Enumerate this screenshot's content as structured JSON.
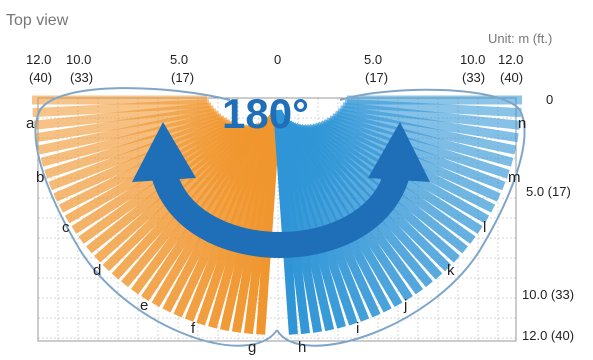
{
  "title": "Top view",
  "unit": "Unit: m (ft.)",
  "angle": "180°",
  "top_ticks": [
    {
      "m": "12.0",
      "ft": "(40)"
    },
    {
      "m": "10.0",
      "ft": "(33)"
    },
    {
      "m": "5.0",
      "ft": "(17)"
    },
    {
      "m": "0",
      "ft": ""
    },
    {
      "m": "5.0",
      "ft": "(17)"
    },
    {
      "m": "10.0",
      "ft": "(33)"
    },
    {
      "m": "12.0",
      "ft": "(40)"
    }
  ],
  "right_ticks": [
    "0",
    "5.0 (17)",
    "10.0 (33)",
    "12.0 (40)"
  ],
  "zones_left": [
    "a",
    "b",
    "c",
    "d",
    "e",
    "f",
    "g"
  ],
  "zones_right": [
    "n",
    "m",
    "l",
    "k",
    "j",
    "i",
    "h"
  ],
  "colors": {
    "orange": "#f0962e",
    "blue": "#2f95d6",
    "arrow": "#1f6fb8",
    "outline": "#7fa6c8"
  }
}
